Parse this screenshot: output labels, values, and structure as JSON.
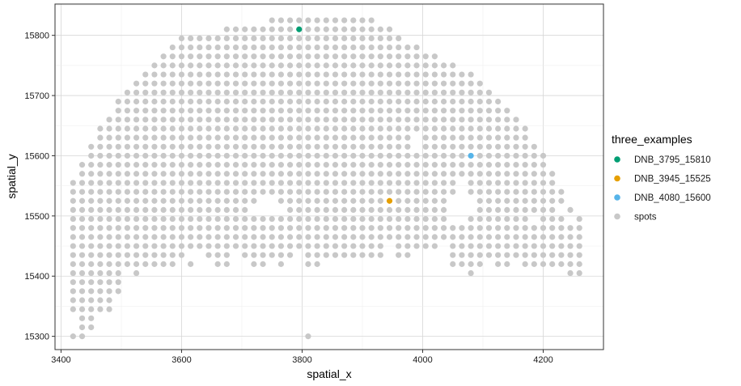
{
  "chart_data": {
    "type": "scatter",
    "xlabel": "spatial_x",
    "ylabel": "spatial_y",
    "xlim": [
      3390,
      4300
    ],
    "ylim": [
      15278,
      15852
    ],
    "xticks": [
      3400,
      3600,
      3800,
      4000,
      4200
    ],
    "yticks": [
      15300,
      15400,
      15500,
      15600,
      15700,
      15800
    ],
    "grid": true,
    "legend": {
      "title": "three_examples",
      "placement": "right",
      "entries": [
        {
          "label": "DNB_3795_15810",
          "color": "#009E73"
        },
        {
          "label": "DNB_3945_15525",
          "color": "#E69F00"
        },
        {
          "label": "DNB_4080_15600",
          "color": "#56B4E9"
        },
        {
          "label": "spots",
          "color": "#C8C8C8"
        }
      ]
    },
    "grid_spacing": {
      "x": 15,
      "y": 15
    },
    "spots_rows": [
      {
        "y": 15825,
        "ranges": [
          [
            3750,
            3915
          ]
        ]
      },
      {
        "y": 15810,
        "ranges": [
          [
            3675,
            3945
          ]
        ]
      },
      {
        "y": 15795,
        "ranges": [
          [
            3600,
            3960
          ]
        ]
      },
      {
        "y": 15780,
        "ranges": [
          [
            3585,
            3990
          ]
        ]
      },
      {
        "y": 15765,
        "ranges": [
          [
            3570,
            4020
          ]
        ]
      },
      {
        "y": 15750,
        "ranges": [
          [
            3555,
            4050
          ]
        ]
      },
      {
        "y": 15735,
        "ranges": [
          [
            3540,
            4080
          ]
        ]
      },
      {
        "y": 15720,
        "ranges": [
          [
            3525,
            4095
          ]
        ]
      },
      {
        "y": 15705,
        "ranges": [
          [
            3510,
            4110
          ]
        ]
      },
      {
        "y": 15690,
        "ranges": [
          [
            3495,
            4125
          ]
        ]
      },
      {
        "y": 15675,
        "ranges": [
          [
            3495,
            4140
          ]
        ]
      },
      {
        "y": 15660,
        "ranges": [
          [
            3480,
            4155
          ]
        ]
      },
      {
        "y": 15645,
        "ranges": [
          [
            3465,
            4170
          ]
        ]
      },
      {
        "y": 15630,
        "ranges": [
          [
            3465,
            3975
          ],
          [
            4005,
            4170
          ]
        ]
      },
      {
        "y": 15615,
        "ranges": [
          [
            3450,
            3975
          ],
          [
            4005,
            4185
          ]
        ]
      },
      {
        "y": 15600,
        "ranges": [
          [
            3450,
            4200
          ]
        ]
      },
      {
        "y": 15585,
        "ranges": [
          [
            3435,
            4200
          ]
        ]
      },
      {
        "y": 15570,
        "ranges": [
          [
            3435,
            4215
          ]
        ]
      },
      {
        "y": 15555,
        "ranges": [
          [
            3420,
            4050
          ],
          [
            4080,
            4215
          ]
        ]
      },
      {
        "y": 15540,
        "ranges": [
          [
            3420,
            4050
          ],
          [
            4080,
            4230
          ]
        ]
      },
      {
        "y": 15525,
        "ranges": [
          [
            3420,
            3720
          ],
          [
            3765,
            4035
          ],
          [
            4095,
            4230
          ]
        ]
      },
      {
        "y": 15510,
        "ranges": [
          [
            3420,
            3705
          ],
          [
            3780,
            4035
          ],
          [
            4095,
            4215
          ],
          [
            4245,
            4245
          ]
        ]
      },
      {
        "y": 15495,
        "ranges": [
          [
            3420,
            4035
          ],
          [
            4080,
            4170
          ],
          [
            4200,
            4230
          ],
          [
            4260,
            4260
          ]
        ]
      },
      {
        "y": 15480,
        "ranges": [
          [
            3420,
            4050
          ],
          [
            4065,
            4260
          ]
        ]
      },
      {
        "y": 15465,
        "ranges": [
          [
            3420,
            4260
          ]
        ]
      },
      {
        "y": 15450,
        "ranges": [
          [
            3420,
            3930
          ],
          [
            3960,
            4020
          ],
          [
            4050,
            4260
          ]
        ]
      },
      {
        "y": 15435,
        "ranges": [
          [
            3420,
            3600
          ],
          [
            3645,
            3675
          ],
          [
            3705,
            3780
          ],
          [
            3810,
            3930
          ],
          [
            3960,
            3975
          ],
          [
            4050,
            4260
          ]
        ]
      },
      {
        "y": 15420,
        "ranges": [
          [
            3420,
            3585
          ],
          [
            3615,
            3615
          ],
          [
            3660,
            3675
          ],
          [
            3720,
            3735
          ],
          [
            3765,
            3765
          ],
          [
            3810,
            3825
          ],
          [
            4050,
            4095
          ],
          [
            4125,
            4140
          ],
          [
            4170,
            4260
          ]
        ]
      },
      {
        "y": 15405,
        "ranges": [
          [
            3420,
            3495
          ],
          [
            3525,
            3525
          ],
          [
            4080,
            4080
          ],
          [
            4245,
            4260
          ]
        ]
      },
      {
        "y": 15390,
        "ranges": [
          [
            3420,
            3495
          ]
        ]
      },
      {
        "y": 15375,
        "ranges": [
          [
            3420,
            3495
          ]
        ]
      },
      {
        "y": 15360,
        "ranges": [
          [
            3420,
            3480
          ]
        ]
      },
      {
        "y": 15345,
        "ranges": [
          [
            3420,
            3480
          ]
        ]
      },
      {
        "y": 15330,
        "ranges": [
          [
            3435,
            3450
          ]
        ]
      },
      {
        "y": 15315,
        "ranges": [
          [
            3435,
            3450
          ]
        ]
      },
      {
        "y": 15300,
        "ranges": [
          [
            3420,
            3435
          ],
          [
            3810,
            3810
          ]
        ]
      }
    ],
    "highlights": [
      {
        "label": "DNB_3795_15810",
        "x": 3795,
        "y": 15810,
        "color": "#009E73"
      },
      {
        "label": "DNB_3945_15525",
        "x": 3945,
        "y": 15525,
        "color": "#E69F00"
      },
      {
        "label": "DNB_4080_15600",
        "x": 4080,
        "y": 15600,
        "color": "#56B4E9"
      }
    ]
  }
}
